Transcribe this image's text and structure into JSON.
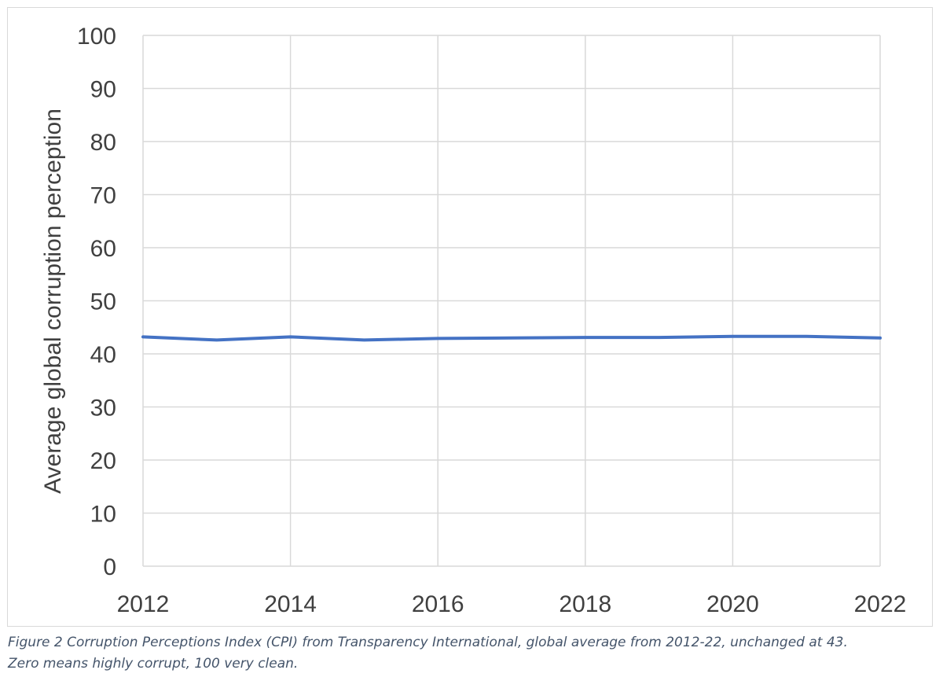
{
  "chart_data": {
    "type": "line",
    "title": "",
    "xlabel": "",
    "ylabel": "Average global corruption perception",
    "x": [
      2012,
      2013,
      2014,
      2015,
      2016,
      2017,
      2018,
      2019,
      2020,
      2021,
      2022
    ],
    "series": [
      {
        "values": [
          43.2,
          42.6,
          43.2,
          42.6,
          42.9,
          43.0,
          43.1,
          43.1,
          43.3,
          43.3,
          43.0
        ],
        "color": "#4472c4"
      }
    ],
    "xlim": [
      2012,
      2022
    ],
    "ylim": [
      0,
      100
    ],
    "xticks": [
      2012,
      2014,
      2016,
      2018,
      2020,
      2022
    ],
    "yticks": [
      0,
      10,
      20,
      30,
      40,
      50,
      60,
      70,
      80,
      90,
      100
    ],
    "grid": true,
    "legend": "none"
  },
  "caption": {
    "line1": "Figure 2 Corruption Perceptions Index (CPI) from Transparency International, global average from 2012-22, unchanged at 43.",
    "line2": "Zero means highly corrupt, 100 very clean."
  }
}
